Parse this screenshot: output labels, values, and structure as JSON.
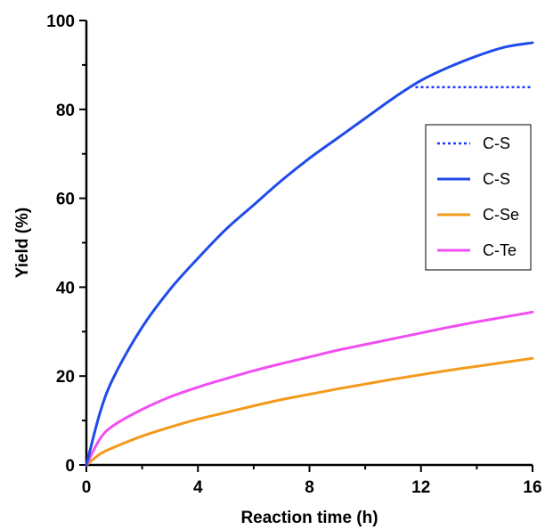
{
  "chart_data": {
    "type": "line",
    "title": "",
    "xlabel": "Reaction time (h)",
    "ylabel": "Yield (%)",
    "xlim": [
      0,
      16
    ],
    "ylim": [
      0,
      100
    ],
    "xticks": [
      0,
      4,
      8,
      12,
      16
    ],
    "yticks": [
      0,
      20,
      40,
      60,
      80,
      100
    ],
    "grid": false,
    "legend_position": "right",
    "series": [
      {
        "name": "C-S",
        "style": "dotted",
        "color": "#1b3bff",
        "x": [
          11.8,
          16
        ],
        "y": [
          85,
          85
        ]
      },
      {
        "name": "C-S",
        "style": "solid",
        "color": "#1f4be8",
        "x": [
          0,
          0.5,
          1,
          2,
          3,
          4,
          5,
          6,
          7,
          8,
          9,
          10,
          11,
          12,
          13,
          14,
          15,
          16
        ],
        "y": [
          0,
          12,
          20,
          31,
          39.5,
          46.5,
          53,
          58.5,
          64,
          69,
          73.5,
          78,
          82.5,
          86.5,
          89.5,
          92,
          94,
          95
        ]
      },
      {
        "name": "C-Se",
        "style": "solid",
        "color": "#f39a1a",
        "x": [
          0,
          0.5,
          1,
          2,
          3,
          4,
          5,
          6,
          7,
          8,
          9,
          10,
          11,
          12,
          13,
          14,
          15,
          16
        ],
        "y": [
          0,
          2.5,
          4,
          6.5,
          8.5,
          10.3,
          11.8,
          13.3,
          14.7,
          15.9,
          17.1,
          18.2,
          19.3,
          20.3,
          21.3,
          22.2,
          23.1,
          24
        ]
      },
      {
        "name": "C-Te",
        "style": "solid",
        "color": "#f04ff2",
        "x": [
          0,
          0.5,
          1,
          2,
          3,
          4,
          5,
          6,
          7,
          8,
          9,
          10,
          11,
          12,
          13,
          14,
          15,
          16
        ],
        "y": [
          0,
          6,
          9,
          12.5,
          15.3,
          17.5,
          19.4,
          21.2,
          22.8,
          24.3,
          25.8,
          27.1,
          28.4,
          29.7,
          31,
          32.2,
          33.3,
          34.4
        ]
      }
    ]
  }
}
